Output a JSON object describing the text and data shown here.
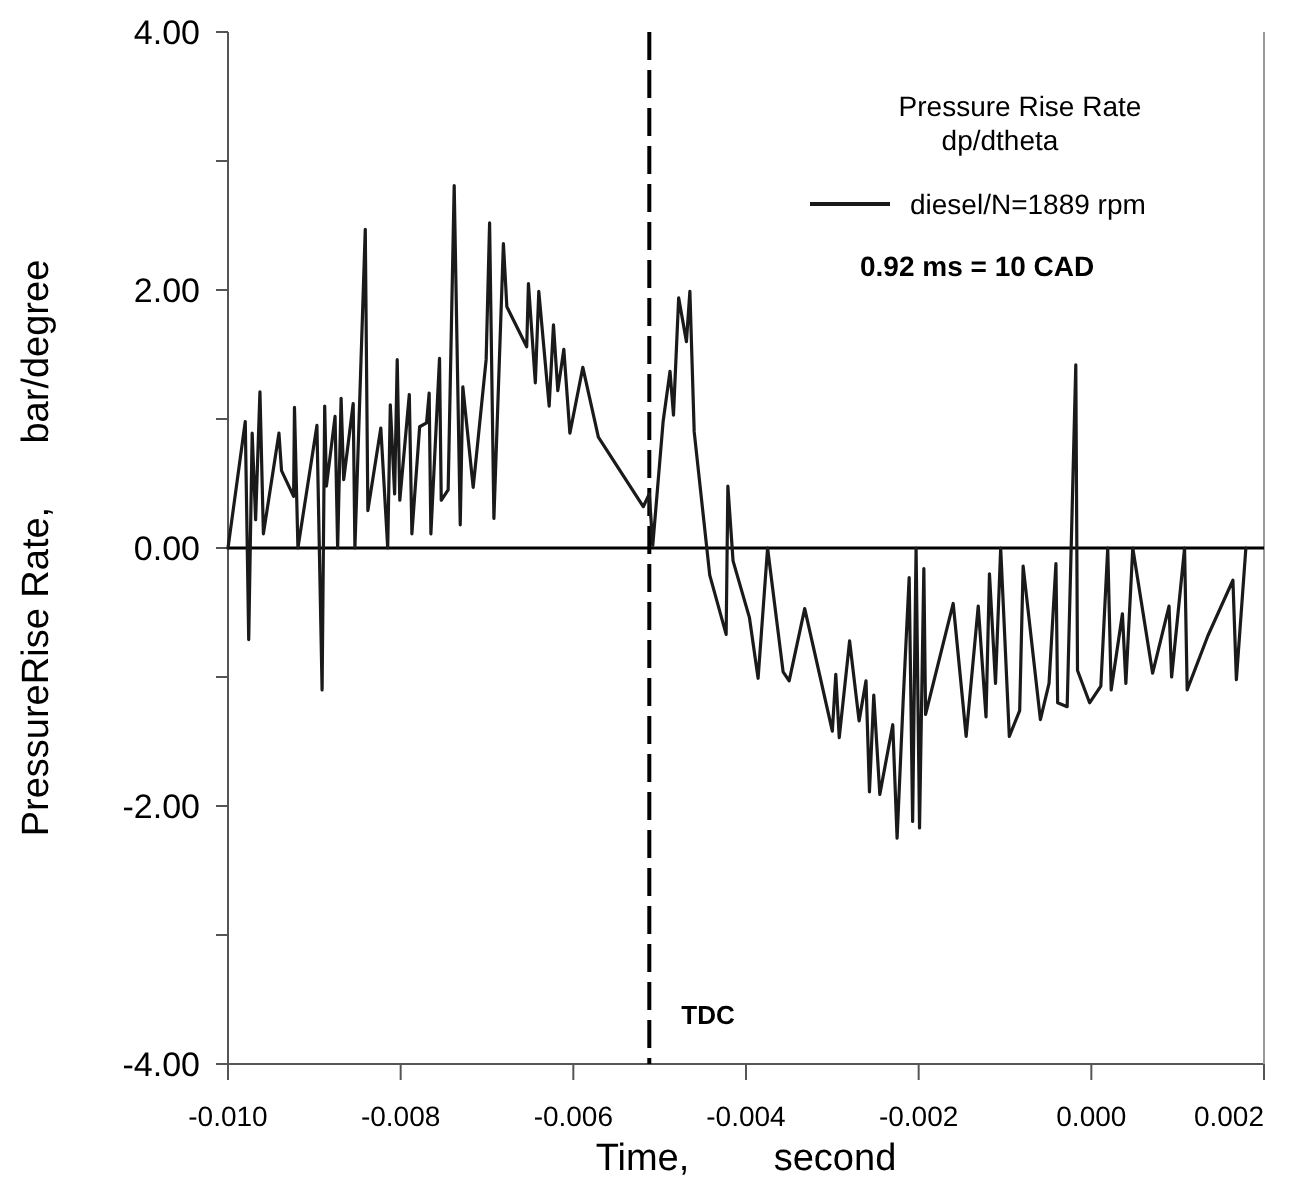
{
  "chart_data": {
    "type": "line",
    "legend_title": "Pressure Rise Rate dp/dtheta",
    "xlabel": "Time,        second",
    "ylabel": "PressureRise Rate,      bar/degree",
    "annotations": [
      "0.92 ms = 10 CAD"
    ],
    "xlim": [
      -0.01,
      0.002
    ],
    "ylim": [
      -4,
      4
    ],
    "xticks": [
      {
        "value": -0.01,
        "label": "-0.010"
      },
      {
        "value": -0.008,
        "label": "-0.008"
      },
      {
        "value": -0.006,
        "label": "-0.006"
      },
      {
        "value": -0.004,
        "label": "-0.004"
      },
      {
        "value": -0.002,
        "label": "-0.002"
      },
      {
        "value": 0,
        "label": "0.000"
      },
      {
        "value": 0.002,
        "label": "0.002"
      }
    ],
    "yticks": [
      {
        "value": -4,
        "label": "-4.00"
      },
      {
        "value": -3,
        "label": null
      },
      {
        "value": -2,
        "label": "-2.00"
      },
      {
        "value": -1,
        "label": null
      },
      {
        "value": 0,
        "label": "0.00"
      },
      {
        "value": 1,
        "label": null
      },
      {
        "value": 2,
        "label": "2.00"
      },
      {
        "value": 3,
        "label": null
      },
      {
        "value": 4,
        "label": "4.00"
      }
    ],
    "ref_lines": [
      {
        "axis": "x",
        "value": -0.00512,
        "label": "TDC",
        "line_style": "dashed",
        "color": "#000000"
      },
      {
        "axis": "y",
        "value": 0,
        "color": "#000000",
        "line_style": "solid"
      }
    ],
    "grid": false,
    "legend": "top right",
    "marker": "none",
    "line_style": "solid",
    "series": [
      {
        "name": "diesel/N=1889 rpm",
        "color": "#1a1a1a",
        "x": [
          -0.01,
          -0.0098,
          -0.00976,
          -0.00972,
          -0.00968,
          -0.00963,
          -0.00959,
          -0.00941,
          -0.00938,
          -0.00924,
          -0.00923,
          -0.00919,
          -0.00897,
          -0.00891,
          -0.00888,
          -0.00886,
          -0.00876,
          -0.00873,
          -0.00869,
          -0.00866,
          -0.00855,
          -0.00853,
          -0.00841,
          -0.00838,
          -0.00823,
          -0.00815,
          -0.00812,
          -0.00807,
          -0.00804,
          -0.00801,
          -0.0079,
          -0.00787,
          -0.00778,
          -0.0077,
          -0.00767,
          -0.00765,
          -0.00755,
          -0.00753,
          -0.00745,
          -0.00738,
          -0.00731,
          -0.00728,
          -0.00716,
          -0.00701,
          -0.00697,
          -0.00692,
          -0.00681,
          -0.00677,
          -0.00654,
          -0.00652,
          -0.00644,
          -0.0064,
          -0.00628,
          -0.00623,
          -0.00618,
          -0.00611,
          -0.00604,
          -0.00589,
          -0.00571,
          -0.00519,
          -0.00512,
          -0.00508,
          -0.00496,
          -0.00488,
          -0.00484,
          -0.00478,
          -0.00469,
          -0.00465,
          -0.0046,
          -0.00442,
          -0.00423,
          -0.00421,
          -0.00415,
          -0.00396,
          -0.00386,
          -0.00375,
          -0.00357,
          -0.0035,
          -0.00332,
          -0.003,
          -0.00296,
          -0.00292,
          -0.0028,
          -0.00269,
          -0.00261,
          -0.00257,
          -0.00252,
          -0.00245,
          -0.0023,
          -0.00225,
          -0.00218,
          -0.00211,
          -0.00207,
          -0.00203,
          -0.00199,
          -0.00194,
          -0.00192,
          -0.0016,
          -0.00145,
          -0.00131,
          -0.00122,
          -0.00118,
          -0.00111,
          -0.00105,
          -0.00095,
          -0.00083,
          -0.00079,
          -0.00059,
          -0.00049,
          -0.00041,
          -0.00039,
          -0.00028,
          -0.00018,
          -0.00016,
          -2e-05,
          0.00011,
          0.00019,
          0.00023,
          0.00036,
          0.0004,
          0.00048,
          0.00071,
          0.0009,
          0.00093,
          0.00108,
          0.00111,
          0.00135,
          0.00164,
          0.00168,
          0.00179
        ],
        "values": [
          0.0,
          0.98,
          -0.71,
          0.89,
          0.22,
          1.21,
          0.11,
          0.89,
          0.6,
          0.4,
          1.09,
          0.0,
          0.95,
          -1.1,
          1.1,
          0.48,
          1.02,
          0.0,
          1.16,
          0.53,
          1.12,
          0.0,
          2.47,
          0.29,
          0.93,
          0.0,
          1.11,
          0.42,
          1.46,
          0.37,
          1.19,
          0.11,
          0.94,
          0.97,
          1.2,
          0.11,
          1.47,
          0.37,
          0.45,
          2.81,
          0.18,
          1.25,
          0.47,
          1.46,
          2.52,
          0.23,
          2.36,
          1.87,
          1.56,
          2.05,
          1.28,
          1.99,
          1.1,
          1.73,
          1.22,
          1.54,
          0.89,
          1.4,
          0.86,
          0.32,
          0.42,
          0.02,
          0.98,
          1.37,
          1.03,
          1.94,
          1.6,
          1.99,
          0.9,
          -0.21,
          -0.67,
          0.48,
          -0.1,
          -0.54,
          -1.01,
          0.0,
          -0.96,
          -1.03,
          -0.47,
          -1.42,
          -0.98,
          -1.47,
          -0.72,
          -1.34,
          -1.03,
          -1.89,
          -1.14,
          -1.91,
          -1.37,
          -2.25,
          -1.19,
          -0.23,
          -2.12,
          0.0,
          -2.17,
          -0.16,
          -1.29,
          -0.43,
          -1.46,
          -0.45,
          -1.31,
          -0.2,
          -1.05,
          0.0,
          -1.46,
          -1.26,
          -0.14,
          -1.33,
          -1.05,
          -0.12,
          -1.2,
          -1.23,
          1.42,
          -0.95,
          -1.2,
          -1.07,
          0.0,
          -1.1,
          -0.51,
          -1.05,
          0.0,
          -0.97,
          -0.45,
          -1.0,
          0.0,
          -1.1,
          -0.68,
          -0.25,
          -1.02,
          0.0
        ]
      }
    ]
  }
}
